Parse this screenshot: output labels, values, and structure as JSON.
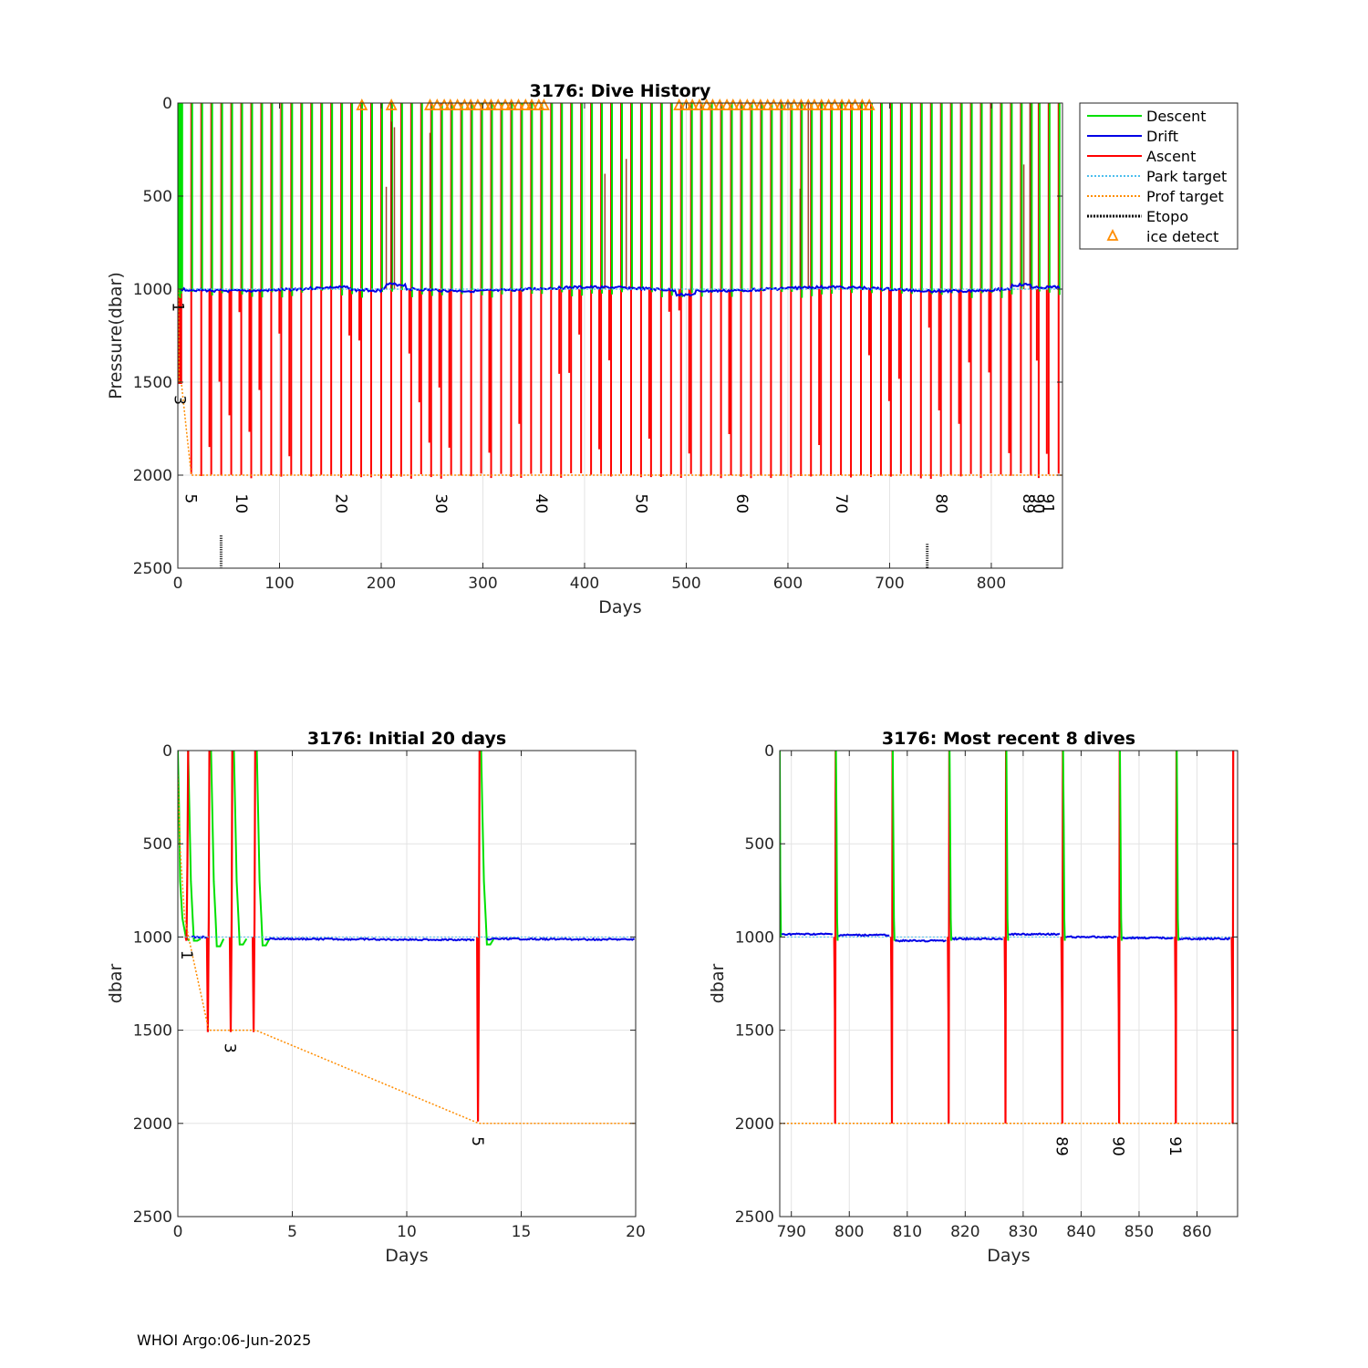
{
  "footer": "WHOI Argo:06-Jun-2025",
  "colors": {
    "descent": "#00e000",
    "drift": "#0000e6",
    "ascent": "#ff0000",
    "park_target": "#4dbeee",
    "prof_target": "#ff8c00",
    "etopo": "#000000",
    "ice": "#ff8c00"
  },
  "chart_data": [
    {
      "id": "history",
      "type": "line",
      "title": "3176: Dive History",
      "xlabel": "Days",
      "ylabel": "Pressure(dbar)",
      "xlim": [
        0,
        870
      ],
      "ylim": [
        0,
        2500
      ],
      "y_reversed": true,
      "grid": true,
      "xticks": [
        0,
        100,
        200,
        300,
        400,
        500,
        600,
        700,
        800
      ],
      "yticks": [
        0,
        500,
        1000,
        1500,
        2000,
        2500
      ],
      "legend": {
        "placement": "outside-top-right",
        "entries": [
          "Descent",
          "Drift",
          "Ascent",
          "Park target",
          "Prof target",
          "Etopo",
          "ice detect"
        ]
      },
      "park_target": 1000,
      "prof_target": [
        [
          0,
          1000
        ],
        [
          0.5,
          1000
        ],
        [
          1.3,
          1500
        ],
        [
          3.4,
          1500
        ],
        [
          13.2,
          2000
        ],
        [
          870,
          2000
        ]
      ],
      "cycle_labels": [
        {
          "text": "1",
          "x": 0.4,
          "y": 1070
        },
        {
          "text": "3",
          "x": 2.3,
          "y": 1570
        },
        {
          "text": "5",
          "x": 13.2,
          "y": 2100
        },
        {
          "text": "10",
          "x": 63,
          "y": 2100
        },
        {
          "text": "20",
          "x": 161,
          "y": 2100
        },
        {
          "text": "30",
          "x": 259,
          "y": 2100
        },
        {
          "text": "40",
          "x": 358,
          "y": 2100
        },
        {
          "text": "50",
          "x": 456,
          "y": 2100
        },
        {
          "text": "60",
          "x": 555,
          "y": 2100
        },
        {
          "text": "70",
          "x": 653,
          "y": 2100
        },
        {
          "text": "80",
          "x": 751,
          "y": 2100
        },
        {
          "text": "89",
          "x": 836.7,
          "y": 2100
        },
        {
          "text": "90",
          "x": 846.5,
          "y": 2100
        },
        {
          "text": "91",
          "x": 856.3,
          "y": 2100
        }
      ],
      "ice_detect_days": [
        181,
        210,
        248,
        255,
        262,
        268,
        275,
        282,
        288,
        295,
        302,
        308,
        315,
        322,
        328,
        335,
        342,
        348,
        355,
        360,
        493,
        500,
        506,
        513,
        520,
        526,
        533,
        540,
        546,
        553,
        560,
        566,
        573,
        580,
        586,
        593,
        600,
        606,
        613,
        620,
        626,
        633,
        640,
        646,
        653,
        660,
        666,
        673,
        680
      ],
      "etopo": [
        {
          "x": 42.5,
          "top": 2325
        },
        {
          "x": 737,
          "top": 2370
        }
      ]
    },
    {
      "id": "initial",
      "type": "line",
      "title": "3176: Initial 20 days",
      "xlabel": "Days",
      "ylabel": "dbar",
      "xlim": [
        0,
        20
      ],
      "ylim": [
        0,
        2500
      ],
      "y_reversed": true,
      "grid": true,
      "xticks": [
        0,
        5,
        10,
        15,
        20
      ],
      "yticks": [
        0,
        500,
        1000,
        1500,
        2000,
        2500
      ],
      "prof_target": [
        [
          0,
          130
        ],
        [
          0.1,
          520
        ],
        [
          0.3,
          900
        ],
        [
          0.5,
          1020
        ],
        [
          1.35,
          1500
        ],
        [
          3.4,
          1500
        ],
        [
          13.15,
          2000
        ],
        [
          20,
          2000
        ]
      ],
      "cycle_labels": [
        {
          "text": "1",
          "x": 0.4,
          "y": 1070
        },
        {
          "text": "3",
          "x": 2.3,
          "y": 1570
        },
        {
          "text": "5",
          "x": 13.1,
          "y": 2070
        }
      ],
      "descents": [
        {
          "x": 0.45,
          "bottom": 1020
        },
        {
          "x": 1.45,
          "bottom": 1050
        },
        {
          "x": 2.45,
          "bottom": 1040
        },
        {
          "x": 3.45,
          "bottom": 1045
        },
        {
          "x": 13.25,
          "bottom": 1040
        }
      ],
      "ascents": [
        {
          "x": 0.42,
          "bottom": 1020,
          "top": 0
        },
        {
          "x": 1.35,
          "bottom": 1510,
          "top": 0
        },
        {
          "x": 2.35,
          "bottom": 1510,
          "top": 0
        },
        {
          "x": 3.35,
          "bottom": 1510,
          "top": 0
        },
        {
          "x": 13.15,
          "bottom": 1990,
          "top": 0
        }
      ],
      "drift_segments": [
        {
          "x0": 0.6,
          "x1": 1.3,
          "y": 1000
        },
        {
          "x0": 3.8,
          "x1": 13.0,
          "y": 1010
        },
        {
          "x0": 13.5,
          "x1": 20.0,
          "y": 1010
        }
      ]
    },
    {
      "id": "recent",
      "type": "line",
      "title": "3176: Most recent 8 dives",
      "xlabel": "Days",
      "ylabel": "dbar",
      "xlim": [
        788,
        867
      ],
      "ylim": [
        0,
        2500
      ],
      "y_reversed": true,
      "grid": true,
      "xticks": [
        790,
        800,
        810,
        820,
        830,
        840,
        850,
        860
      ],
      "yticks": [
        0,
        500,
        1000,
        1500,
        2000,
        2500
      ],
      "prof_target": [
        [
          788,
          2000
        ],
        [
          867,
          2000
        ]
      ],
      "cycle_labels": [
        {
          "text": "89",
          "x": 836.7,
          "y": 2070
        },
        {
          "text": "90",
          "x": 846.5,
          "y": 2070
        },
        {
          "text": "91",
          "x": 856.3,
          "y": 2070
        }
      ],
      "cycle_days": [
        797.6,
        807.4,
        817.2,
        827.0,
        836.8,
        846.6,
        856.4,
        866.2
      ],
      "drift_levels": [
        990,
        1020,
        1010,
        985,
        1000,
        1005,
        1010
      ]
    }
  ]
}
